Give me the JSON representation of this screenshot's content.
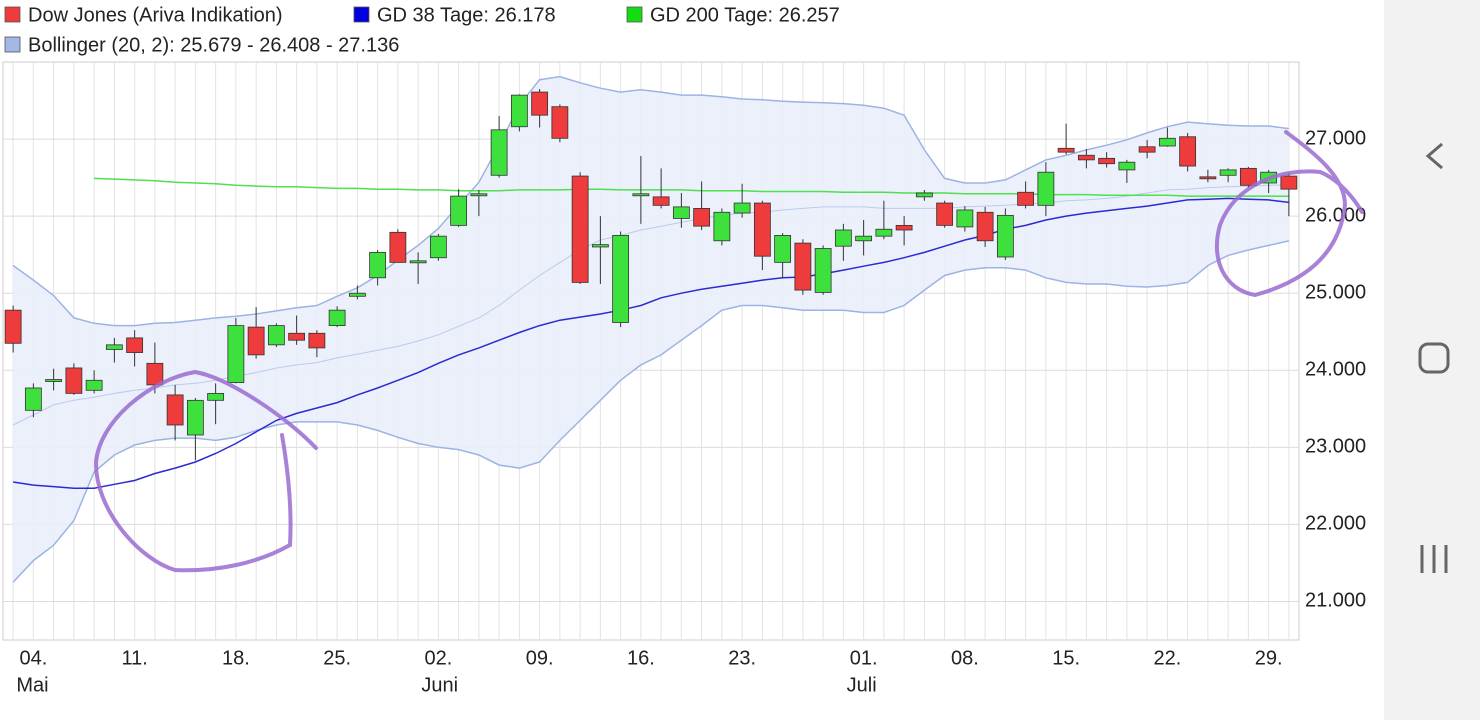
{
  "chart_data": {
    "type": "candlestick",
    "categories": [
      null,
      "04.",
      null,
      null,
      null,
      null,
      "11.",
      null,
      null,
      null,
      null,
      "18.",
      null,
      null,
      null,
      null,
      "25.",
      null,
      null,
      null,
      null,
      "02.",
      null,
      null,
      null,
      null,
      "09.",
      null,
      null,
      null,
      null,
      "16.",
      null,
      null,
      null,
      null,
      "23.",
      null,
      null,
      null,
      null,
      null,
      "01.",
      null,
      null,
      null,
      null,
      "08.",
      null,
      null,
      null,
      null,
      "15.",
      null,
      null,
      null,
      null,
      "22.",
      null,
      null,
      null,
      null,
      "29.",
      null
    ],
    "category_months": [
      null,
      "Mai",
      null,
      null,
      null,
      null,
      null,
      null,
      null,
      null,
      null,
      null,
      null,
      null,
      null,
      null,
      null,
      null,
      null,
      null,
      null,
      "Juni",
      null,
      null,
      null,
      null,
      null,
      null,
      null,
      null,
      null,
      null,
      null,
      null,
      null,
      null,
      null,
      null,
      null,
      null,
      null,
      null,
      "Juli",
      null,
      null,
      null,
      null,
      null,
      null,
      null,
      null,
      null,
      null,
      null,
      null,
      null,
      null,
      null,
      null,
      null,
      null,
      null,
      null,
      null
    ],
    "ylim": [
      20500,
      28000
    ],
    "yticks": [
      {
        "value": 21000,
        "label": "21.000"
      },
      {
        "value": 22000,
        "label": "22.000"
      },
      {
        "value": 23000,
        "label": "23.000"
      },
      {
        "value": 24000,
        "label": "24.000"
      },
      {
        "value": 25000,
        "label": "25.000"
      },
      {
        "value": 26000,
        "label": "26.000"
      },
      {
        "value": 27000,
        "label": "27.000"
      }
    ],
    "grid": true,
    "ohlc": {
      "name": "Dow Jones (Ariva Indikation)",
      "color": "#ee3b3b",
      "up_color": "#3ee03e",
      "down_color": "#ee3b3b",
      "open": [
        24780,
        23480,
        23870,
        24030,
        23740,
        24270,
        24420,
        24090,
        23680,
        23160,
        23610,
        23840,
        24560,
        24330,
        24480,
        24480,
        24580,
        24960,
        25200,
        25790,
        25400,
        25460,
        25880,
        26270,
        26530,
        27160,
        27610,
        27420,
        26520,
        25600,
        24620,
        26270,
        26250,
        25970,
        26100,
        25680,
        26040,
        26170,
        25400,
        25650,
        25010,
        25610,
        25680,
        25740,
        25880,
        26250,
        26170,
        25860,
        26050,
        25470,
        26310,
        26140,
        26880,
        26790,
        26750,
        26600,
        26900,
        26910,
        27030,
        26510,
        26530,
        26620,
        26430,
        26520
      ],
      "high": [
        24840,
        23830,
        24020,
        24090,
        24000,
        24420,
        24520,
        24360,
        23810,
        23640,
        23830,
        24680,
        24820,
        24610,
        24710,
        24520,
        24830,
        25100,
        25560,
        25830,
        25530,
        25770,
        26350,
        26340,
        27300,
        27580,
        27650,
        27450,
        26570,
        26000,
        25800,
        26780,
        26620,
        26300,
        26450,
        26100,
        26420,
        26200,
        25780,
        25700,
        25620,
        25900,
        25950,
        26200,
        26000,
        26340,
        26200,
        26130,
        26120,
        26100,
        26450,
        26700,
        27200,
        26870,
        26830,
        26730,
        26990,
        27150,
        27080,
        26600,
        26620,
        26640,
        26600,
        26560
      ],
      "low": [
        24230,
        23390,
        23740,
        23680,
        23700,
        24100,
        24050,
        23700,
        23090,
        22830,
        23300,
        23830,
        24150,
        24300,
        24330,
        24170,
        24560,
        24920,
        25100,
        25400,
        25120,
        25420,
        25860,
        26000,
        26500,
        27100,
        27150,
        26960,
        25120,
        25120,
        24560,
        25900,
        26100,
        25850,
        25820,
        25620,
        25980,
        25300,
        25200,
        24980,
        24980,
        25420,
        25490,
        25700,
        25620,
        26200,
        25850,
        25800,
        25600,
        25430,
        26100,
        26000,
        26800,
        26620,
        26630,
        26430,
        26750,
        26900,
        26580,
        26440,
        26440,
        26370,
        26300,
        26000
      ],
      "close": [
        24350,
        23770,
        23880,
        23700,
        23870,
        24330,
        24230,
        23810,
        23290,
        23610,
        23700,
        24580,
        24200,
        24580,
        24390,
        24290,
        24780,
        25000,
        25530,
        25400,
        25420,
        25740,
        26260,
        26290,
        27120,
        27570,
        27310,
        27010,
        25140,
        25630,
        25750,
        26290,
        26140,
        26120,
        25870,
        26050,
        26170,
        25480,
        25750,
        25040,
        25580,
        25820,
        25740,
        25830,
        25820,
        26300,
        25880,
        26080,
        25680,
        26010,
        26140,
        26570,
        26830,
        26730,
        26680,
        26700,
        26830,
        27010,
        26650,
        26500,
        26600,
        26400,
        26570,
        26350
      ]
    },
    "overlays": [
      {
        "name": "GD 38 Tage: 26.178",
        "color": "#2b2bd0",
        "values": [
          22550,
          22510,
          22490,
          22470,
          22470,
          22520,
          22570,
          22660,
          22730,
          22810,
          22920,
          23050,
          23200,
          23350,
          23440,
          23510,
          23580,
          23680,
          23770,
          23870,
          23970,
          24090,
          24200,
          24290,
          24390,
          24490,
          24580,
          24650,
          24690,
          24730,
          24780,
          24840,
          24940,
          25000,
          25050,
          25090,
          25130,
          25170,
          25200,
          25210,
          25250,
          25300,
          25350,
          25400,
          25460,
          25530,
          25610,
          25690,
          25750,
          25830,
          25880,
          25950,
          26000,
          26040,
          26070,
          26100,
          26130,
          26170,
          26210,
          26220,
          26230,
          26220,
          26210,
          26178
        ]
      },
      {
        "name": "GD 200 Tage: 26.257",
        "color": "#4ee04e",
        "values": [
          null,
          null,
          null,
          null,
          26490,
          26480,
          26470,
          26460,
          26440,
          26430,
          26420,
          26400,
          26390,
          26380,
          26380,
          26370,
          26360,
          26360,
          26350,
          26350,
          26340,
          26340,
          26330,
          26330,
          26330,
          26340,
          26340,
          26340,
          26350,
          26350,
          26340,
          26340,
          26340,
          26340,
          26330,
          26330,
          26330,
          26320,
          26320,
          26320,
          26320,
          26310,
          26310,
          26310,
          26300,
          26300,
          26300,
          26290,
          26290,
          26290,
          26290,
          26280,
          26280,
          26280,
          26270,
          26270,
          26270,
          26270,
          26260,
          26260,
          26260,
          26260,
          26260,
          26257
        ]
      }
    ],
    "bollinger": {
      "name": "Bollinger (20, 2): 25.679 - 26.408 - 27.136",
      "color": "#9db3e3",
      "fill": "#e9eefb",
      "upper": [
        25360,
        25170,
        24970,
        24680,
        24610,
        24580,
        24580,
        24610,
        24620,
        24650,
        24680,
        24700,
        24730,
        24770,
        24810,
        24840,
        24960,
        25070,
        25230,
        25430,
        25620,
        25840,
        26140,
        26440,
        26920,
        27440,
        27770,
        27810,
        27730,
        27660,
        27610,
        27640,
        27610,
        27570,
        27570,
        27550,
        27520,
        27510,
        27490,
        27480,
        27470,
        27460,
        27440,
        27400,
        27310,
        26860,
        26490,
        26430,
        26430,
        26470,
        26600,
        26730,
        26790,
        26860,
        26920,
        26990,
        27080,
        27160,
        27220,
        27200,
        27180,
        27170,
        27170,
        27136
      ],
      "middle": [
        23290,
        23420,
        23550,
        23610,
        23650,
        23700,
        23740,
        23770,
        23810,
        23830,
        23870,
        23920,
        23970,
        24030,
        24070,
        24100,
        24160,
        24210,
        24260,
        24310,
        24380,
        24460,
        24570,
        24680,
        24840,
        25040,
        25230,
        25400,
        25560,
        25690,
        25750,
        25820,
        25870,
        25920,
        25970,
        26010,
        26040,
        26050,
        26080,
        26100,
        26120,
        26120,
        26120,
        26100,
        26100,
        26100,
        26100,
        26120,
        26130,
        26140,
        26160,
        26170,
        26200,
        26210,
        26230,
        26260,
        26300,
        26340,
        26350,
        26370,
        26380,
        26390,
        26400,
        26408
      ],
      "lower": [
        21250,
        21530,
        21730,
        22050,
        22680,
        22900,
        23030,
        23090,
        23120,
        23120,
        23090,
        23130,
        23220,
        23290,
        23330,
        23330,
        23330,
        23290,
        23220,
        23130,
        23050,
        23000,
        22970,
        22900,
        22770,
        22730,
        22810,
        23090,
        23350,
        23610,
        23870,
        24070,
        24200,
        24390,
        24580,
        24780,
        24840,
        24840,
        24810,
        24780,
        24780,
        24780,
        24750,
        24750,
        24840,
        25040,
        25230,
        25300,
        25330,
        25330,
        25300,
        25200,
        25140,
        25120,
        25120,
        25090,
        25080,
        25100,
        25140,
        25360,
        25490,
        25560,
        25620,
        25679
      ]
    }
  }
}
